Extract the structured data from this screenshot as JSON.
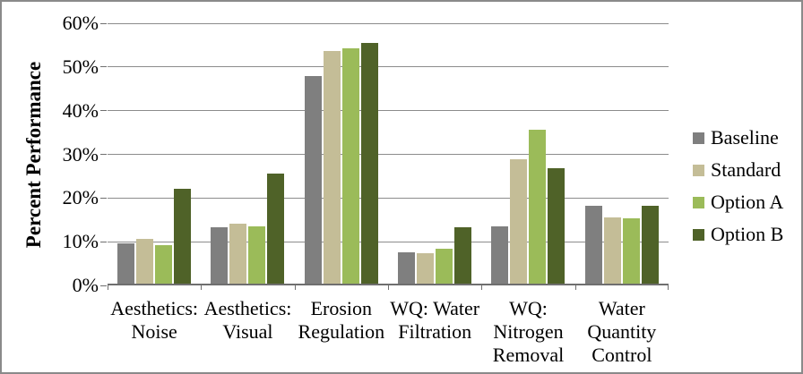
{
  "window": {
    "background_color": "#ffffff",
    "border_color": "#8a8a8a"
  },
  "chart_data": {
    "type": "bar",
    "title": "",
    "y_axis_title": "Percent Performance",
    "xlabel": "",
    "ylabel": "Percent Performance",
    "ylim": [
      0,
      60
    ],
    "y_tick_step": 10,
    "y_tick_labels": [
      "0%",
      "10%",
      "20%",
      "30%",
      "40%",
      "50%",
      "60%"
    ],
    "grid": true,
    "legend_position": "right",
    "categories": [
      "Aesthetics: Noise",
      "Aesthetics: Visual",
      "Erosion Regulation",
      "WQ: Water Filtration",
      "WQ: Nitrogen Removal",
      "Water Quantity Control"
    ],
    "category_label_lines": [
      [
        "Aesthetics:",
        "Noise"
      ],
      [
        "Aesthetics:",
        "Visual"
      ],
      [
        "Erosion",
        "Regulation"
      ],
      [
        "WQ: Water",
        "Filtration"
      ],
      [
        "WQ:",
        "Nitrogen",
        "Removal"
      ],
      [
        "Water",
        "Quantity",
        "Control"
      ]
    ],
    "series": [
      {
        "name": "Baseline",
        "color": "#7F7F7F",
        "values": [
          9.3,
          12.9,
          47.5,
          7.1,
          13.1,
          17.9
        ]
      },
      {
        "name": "Standard",
        "color": "#C4BD97",
        "values": [
          10.3,
          13.8,
          53.2,
          7.0,
          28.4,
          15.1
        ]
      },
      {
        "name": "Option A",
        "color": "#9BBB59",
        "values": [
          8.8,
          13.2,
          53.8,
          7.9,
          35.2,
          15.0
        ]
      },
      {
        "name": "Option B",
        "color": "#4F6228",
        "values": [
          21.8,
          25.2,
          55.0,
          13.0,
          26.4,
          17.9
        ]
      }
    ],
    "colors": {
      "axis": "#6f6f6f",
      "gridline": "#8c8c8c",
      "text": "#000000"
    }
  }
}
